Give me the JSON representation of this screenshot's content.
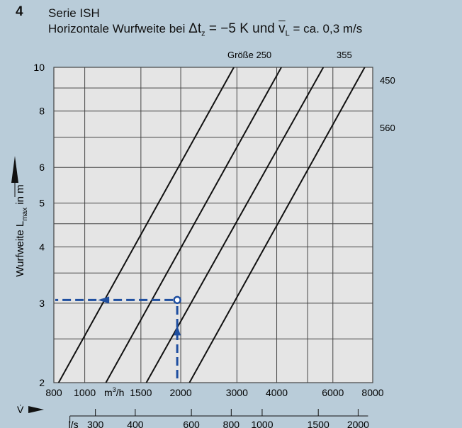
{
  "figure": {
    "number": "4",
    "title_line1": "Serie ISH",
    "title_line2_prefix": "Horizontale Wurfweite bei ",
    "delta_symbol": "Δ",
    "t_var": "t",
    "t_sub": "z",
    "t_value": " = −5 K und ",
    "v_var": "v",
    "v_sub": "L",
    "v_value": " = ca. 0,3 m/s"
  },
  "colors": {
    "background": "#b9ccd9",
    "plot_area": "#e5e5e5",
    "grid": "#444444",
    "curve": "#111111",
    "annotation": "#1f4fa0"
  },
  "chart_data": {
    "type": "line",
    "x_scale": "log",
    "y_scale": "log",
    "xlim": [
      800,
      8000
    ],
    "ylim": [
      2,
      10
    ],
    "x_unit_label": "m³/h",
    "x_ticks": [
      {
        "value": 800,
        "label": "800"
      },
      {
        "value": 1000,
        "label": "1000"
      },
      {
        "value": 1500,
        "label": "1500"
      },
      {
        "value": 2000,
        "label": "2000"
      },
      {
        "value": 3000,
        "label": "3000"
      },
      {
        "value": 4000,
        "label": "4000"
      },
      {
        "value": 6000,
        "label": "6000"
      },
      {
        "value": 8000,
        "label": "8000"
      }
    ],
    "x_gridlines": [
      800,
      1000,
      1500,
      2000,
      3000,
      4000,
      5000,
      6000,
      8000
    ],
    "x_symbol": "V̇",
    "secondary_x_unit_label": "l/s",
    "secondary_x_ticks": [
      {
        "value": 300,
        "label": "300"
      },
      {
        "value": 400,
        "label": "400"
      },
      {
        "value": 600,
        "label": "600"
      },
      {
        "value": 800,
        "label": "800"
      },
      {
        "value": 1000,
        "label": "1000"
      },
      {
        "value": 1500,
        "label": "1500"
      },
      {
        "value": 2000,
        "label": "2000"
      }
    ],
    "y_ticks": [
      {
        "value": 2,
        "label": "2"
      },
      {
        "value": 3,
        "label": "3"
      },
      {
        "value": 4,
        "label": "4"
      },
      {
        "value": 5,
        "label": "5"
      },
      {
        "value": 6,
        "label": "6"
      },
      {
        "value": 8,
        "label": "8"
      },
      {
        "value": 10,
        "label": "10"
      }
    ],
    "y_gridlines": [
      2,
      2.5,
      3,
      3.5,
      4,
      4.5,
      5,
      6,
      7,
      8,
      9,
      10
    ],
    "ylabel_prefix": "Wurfweite L",
    "ylabel_sub": "max",
    "ylabel_suffix": " in m",
    "series_label_prefix": "Größe ",
    "series": [
      {
        "name": "250",
        "points": [
          [
            828,
            2
          ],
          [
            2935,
            10
          ]
        ]
      },
      {
        "name": "355",
        "points": [
          [
            1165,
            2
          ],
          [
            4135,
            10
          ]
        ]
      },
      {
        "name": "450",
        "points": [
          [
            1560,
            2
          ],
          [
            5600,
            10
          ]
        ]
      },
      {
        "name": "560",
        "points": [
          [
            2130,
            2
          ],
          [
            7550,
            10
          ]
        ]
      }
    ],
    "example": {
      "x": 1950,
      "y": 3.05
    }
  }
}
